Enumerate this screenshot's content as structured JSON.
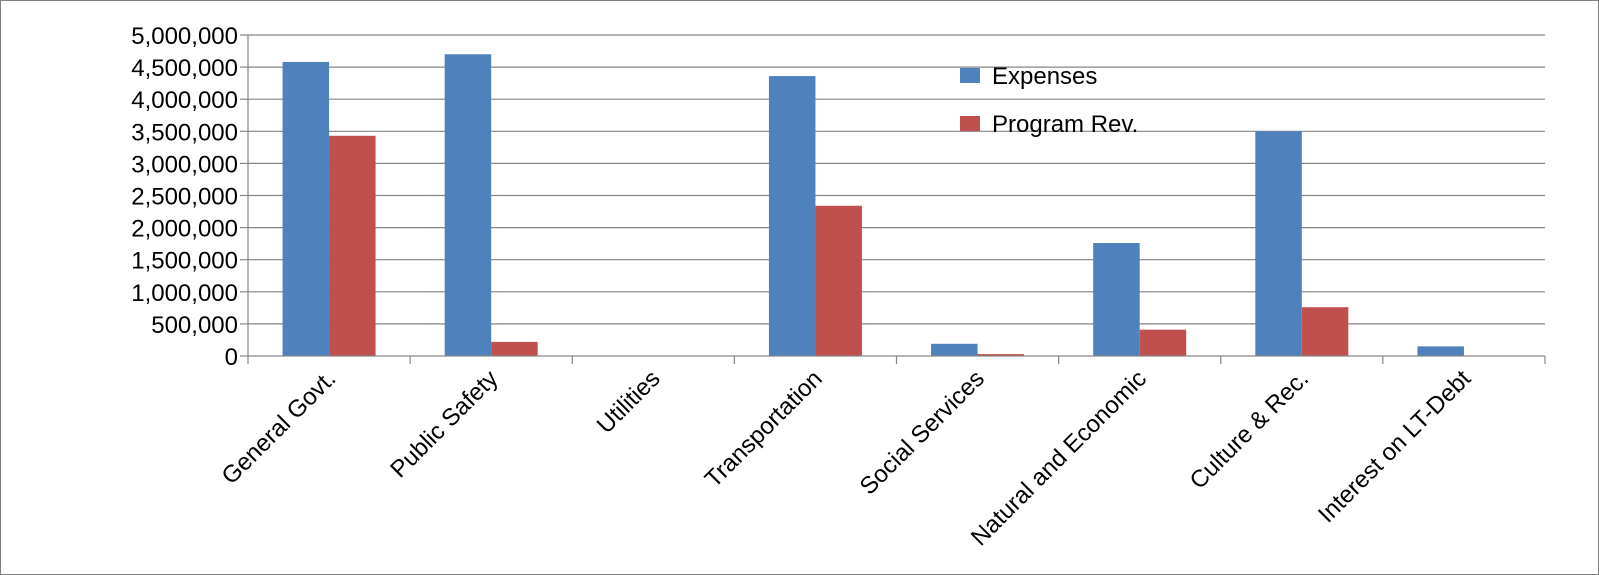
{
  "chart_data": {
    "type": "bar",
    "categories": [
      "General Govt.",
      "Public Safety",
      "Utilities",
      "Transportation",
      "Social Services",
      "Natural and Economic",
      "Culture & Rec.",
      "Interest on LT-Debt"
    ],
    "series": [
      {
        "name": "Expenses",
        "color": "#4F81BD",
        "values": [
          4580000,
          4700000,
          0,
          4360000,
          190000,
          1760000,
          3500000,
          150000
        ]
      },
      {
        "name": "Program Rev.",
        "color": "#C0504D",
        "values": [
          3430000,
          220000,
          0,
          2340000,
          30000,
          410000,
          760000,
          0
        ]
      }
    ],
    "y_ticks": [
      "0",
      "500,000",
      "1,000,000",
      "1,500,000",
      "2,000,000",
      "2,500,000",
      "3,000,000",
      "3,500,000",
      "4,000,000",
      "4,500,000",
      "5,000,000"
    ],
    "ylim": [
      0,
      5000000
    ],
    "grid": true,
    "legend_position": "top-right",
    "title": "",
    "xlabel": "",
    "ylabel": ""
  }
}
